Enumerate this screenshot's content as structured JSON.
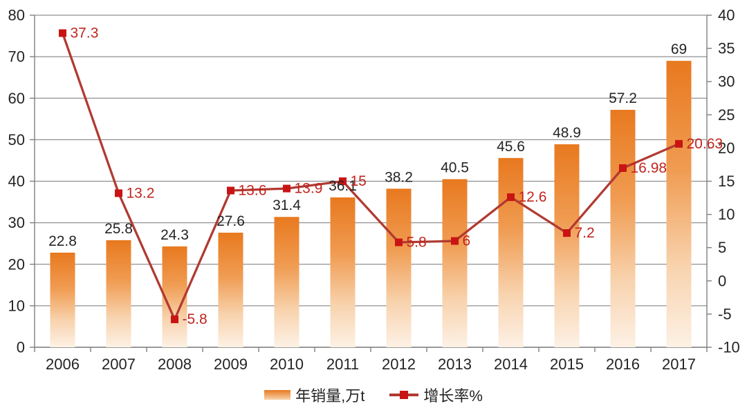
{
  "chart_data": {
    "type": "combo-bar-line",
    "title": "",
    "categories": [
      "2006",
      "2007",
      "2008",
      "2009",
      "2010",
      "2011",
      "2012",
      "2013",
      "2014",
      "2015",
      "2016",
      "2017"
    ],
    "series": [
      {
        "name": "年销量,万t",
        "type": "bar",
        "axis": "left",
        "values": [
          22.8,
          25.8,
          24.3,
          27.6,
          31.4,
          36.1,
          38.2,
          40.5,
          45.6,
          48.9,
          57.2,
          69
        ]
      },
      {
        "name": "增长率%",
        "type": "line",
        "axis": "right",
        "values": [
          37.3,
          13.2,
          -5.8,
          13.6,
          13.9,
          15,
          5.8,
          6,
          12.6,
          7.2,
          16.98,
          20.63
        ]
      }
    ],
    "left_axis": {
      "min": 0,
      "max": 80,
      "step": 10,
      "ticks": [
        "0",
        "10",
        "20",
        "30",
        "40",
        "50",
        "60",
        "70",
        "80"
      ]
    },
    "right_axis": {
      "min": -10,
      "max": 40,
      "step": 5,
      "ticks": [
        "-10",
        "-5",
        "0",
        "5",
        "10",
        "15",
        "20",
        "25",
        "30",
        "35",
        "40"
      ]
    },
    "grid": true,
    "legend_position": "bottom",
    "colors": {
      "bar_top": "#e8791f",
      "bar_mid": "#f09c52",
      "bar_low": "#f8d3ae",
      "bar_bottom": "#fdf1e5",
      "line": "#b13a31",
      "marker": "#c91414",
      "bar_label": "#242424",
      "line_label": "#c0251f",
      "axis_text": "#242424",
      "grid": "#8f8f8f",
      "axis": "#7f7f7f"
    }
  }
}
